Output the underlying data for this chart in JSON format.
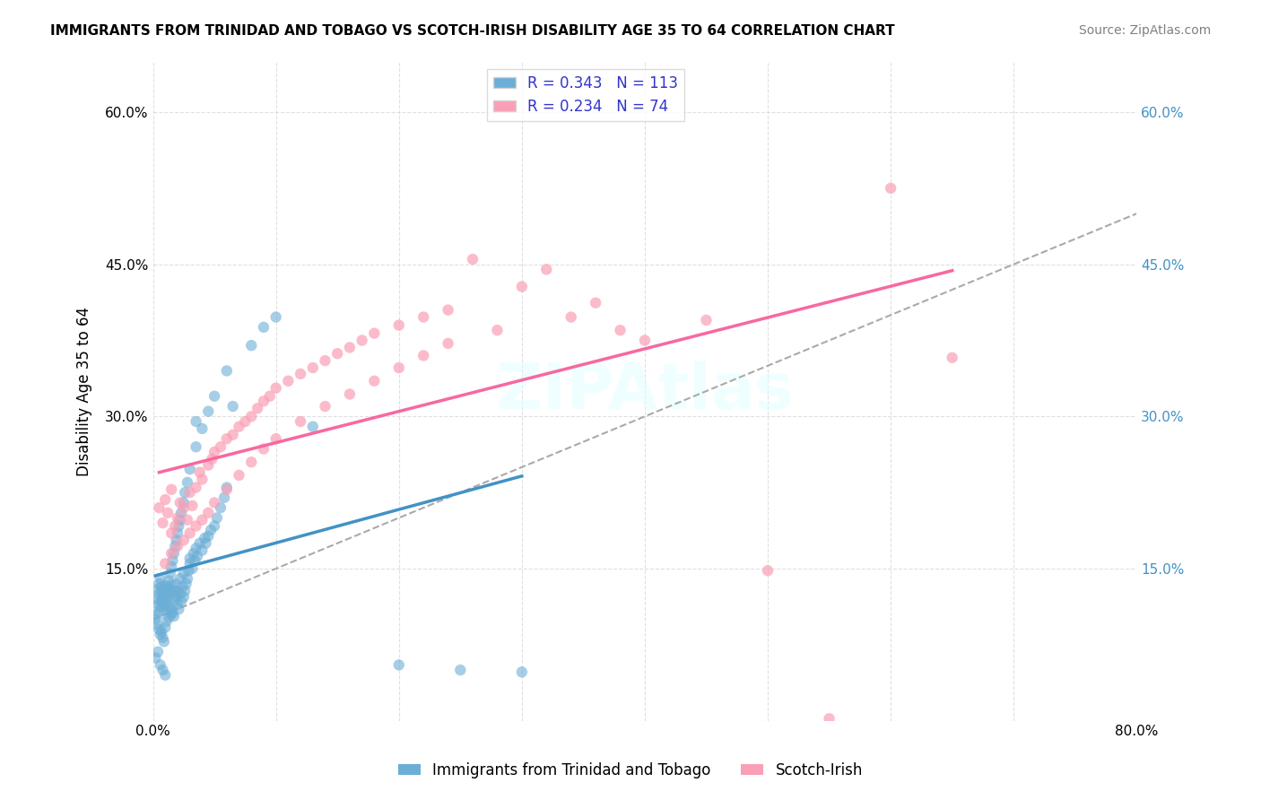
{
  "title": "IMMIGRANTS FROM TRINIDAD AND TOBAGO VS SCOTCH-IRISH DISABILITY AGE 35 TO 64 CORRELATION CHART",
  "source": "Source: ZipAtlas.com",
  "ylabel": "Disability Age 35 to 64",
  "xlabel_blue": "Immigrants from Trinidad and Tobago",
  "xlabel_pink": "Scotch-Irish",
  "R_blue": 0.343,
  "N_blue": 113,
  "R_pink": 0.234,
  "N_pink": 74,
  "xlim": [
    0.0,
    0.8
  ],
  "ylim": [
    0.0,
    0.65
  ],
  "xticks": [
    0.0,
    0.1,
    0.2,
    0.3,
    0.4,
    0.5,
    0.6,
    0.7,
    0.8
  ],
  "yticks": [
    0.0,
    0.15,
    0.3,
    0.45,
    0.6
  ],
  "ytick_labels": [
    "",
    "15.0%",
    "30.0%",
    "45.0%",
    "60.0%"
  ],
  "xtick_labels": [
    "0.0%",
    "",
    "",
    "",
    "",
    "",
    "",
    "",
    "80.0%"
  ],
  "watermark": "ZIPAtlas",
  "color_blue": "#6baed6",
  "color_pink": "#fa9fb5",
  "color_blue_line": "#4292c6",
  "color_pink_line": "#f768a1",
  "color_dashed": "#aaaaaa",
  "blue_scatter_x": [
    0.003,
    0.004,
    0.005,
    0.005,
    0.006,
    0.007,
    0.007,
    0.007,
    0.008,
    0.008,
    0.009,
    0.009,
    0.01,
    0.01,
    0.01,
    0.011,
    0.011,
    0.012,
    0.012,
    0.013,
    0.013,
    0.014,
    0.014,
    0.015,
    0.015,
    0.016,
    0.016,
    0.017,
    0.018,
    0.018,
    0.019,
    0.019,
    0.02,
    0.02,
    0.021,
    0.022,
    0.022,
    0.023,
    0.024,
    0.025,
    0.025,
    0.026,
    0.027,
    0.028,
    0.029,
    0.03,
    0.03,
    0.032,
    0.033,
    0.034,
    0.035,
    0.036,
    0.038,
    0.04,
    0.042,
    0.043,
    0.045,
    0.047,
    0.05,
    0.052,
    0.055,
    0.058,
    0.06,
    0.065,
    0.002,
    0.003,
    0.004,
    0.004,
    0.005,
    0.005,
    0.006,
    0.006,
    0.007,
    0.007,
    0.008,
    0.008,
    0.009,
    0.01,
    0.01,
    0.011,
    0.011,
    0.012,
    0.013,
    0.013,
    0.014,
    0.015,
    0.016,
    0.017,
    0.018,
    0.019,
    0.02,
    0.021,
    0.022,
    0.023,
    0.025,
    0.026,
    0.028,
    0.03,
    0.035,
    0.04,
    0.045,
    0.05,
    0.06,
    0.08,
    0.09,
    0.1,
    0.13,
    0.035,
    0.002,
    0.004,
    0.006,
    0.008,
    0.01,
    0.2,
    0.25,
    0.3
  ],
  "blue_scatter_y": [
    0.12,
    0.13,
    0.125,
    0.135,
    0.14,
    0.118,
    0.128,
    0.132,
    0.115,
    0.122,
    0.119,
    0.129,
    0.112,
    0.124,
    0.133,
    0.116,
    0.126,
    0.108,
    0.121,
    0.113,
    0.13,
    0.11,
    0.127,
    0.105,
    0.134,
    0.107,
    0.125,
    0.103,
    0.128,
    0.119,
    0.122,
    0.135,
    0.115,
    0.128,
    0.11,
    0.125,
    0.14,
    0.118,
    0.132,
    0.122,
    0.145,
    0.128,
    0.135,
    0.14,
    0.148,
    0.155,
    0.16,
    0.15,
    0.165,
    0.158,
    0.17,
    0.162,
    0.175,
    0.168,
    0.18,
    0.175,
    0.182,
    0.188,
    0.192,
    0.2,
    0.21,
    0.22,
    0.23,
    0.31,
    0.1,
    0.095,
    0.105,
    0.115,
    0.09,
    0.108,
    0.085,
    0.112,
    0.088,
    0.118,
    0.082,
    0.122,
    0.078,
    0.125,
    0.092,
    0.128,
    0.098,
    0.132,
    0.102,
    0.138,
    0.145,
    0.152,
    0.158,
    0.165,
    0.172,
    0.178,
    0.185,
    0.192,
    0.198,
    0.205,
    0.215,
    0.225,
    0.235,
    0.248,
    0.27,
    0.288,
    0.305,
    0.32,
    0.345,
    0.37,
    0.388,
    0.398,
    0.29,
    0.295,
    0.062,
    0.068,
    0.055,
    0.05,
    0.045,
    0.055,
    0.05,
    0.048
  ],
  "pink_scatter_x": [
    0.005,
    0.008,
    0.01,
    0.012,
    0.015,
    0.015,
    0.018,
    0.02,
    0.022,
    0.025,
    0.028,
    0.03,
    0.032,
    0.035,
    0.038,
    0.04,
    0.045,
    0.048,
    0.05,
    0.055,
    0.06,
    0.065,
    0.07,
    0.075,
    0.08,
    0.085,
    0.09,
    0.095,
    0.1,
    0.11,
    0.12,
    0.13,
    0.14,
    0.15,
    0.16,
    0.17,
    0.18,
    0.2,
    0.22,
    0.24,
    0.01,
    0.015,
    0.02,
    0.025,
    0.03,
    0.035,
    0.04,
    0.045,
    0.05,
    0.06,
    0.07,
    0.08,
    0.09,
    0.1,
    0.12,
    0.14,
    0.16,
    0.18,
    0.2,
    0.22,
    0.24,
    0.26,
    0.28,
    0.3,
    0.32,
    0.34,
    0.36,
    0.38,
    0.4,
    0.45,
    0.5,
    0.55,
    0.6,
    0.65
  ],
  "pink_scatter_y": [
    0.21,
    0.195,
    0.218,
    0.205,
    0.185,
    0.228,
    0.192,
    0.2,
    0.215,
    0.21,
    0.198,
    0.225,
    0.212,
    0.23,
    0.245,
    0.238,
    0.252,
    0.258,
    0.265,
    0.27,
    0.278,
    0.282,
    0.29,
    0.295,
    0.3,
    0.308,
    0.315,
    0.32,
    0.328,
    0.335,
    0.342,
    0.348,
    0.355,
    0.362,
    0.368,
    0.375,
    0.382,
    0.39,
    0.398,
    0.405,
    0.155,
    0.165,
    0.172,
    0.178,
    0.185,
    0.192,
    0.198,
    0.205,
    0.215,
    0.228,
    0.242,
    0.255,
    0.268,
    0.278,
    0.295,
    0.31,
    0.322,
    0.335,
    0.348,
    0.36,
    0.372,
    0.455,
    0.385,
    0.428,
    0.445,
    0.398,
    0.412,
    0.385,
    0.375,
    0.395,
    0.148,
    0.002,
    0.525,
    0.358
  ]
}
